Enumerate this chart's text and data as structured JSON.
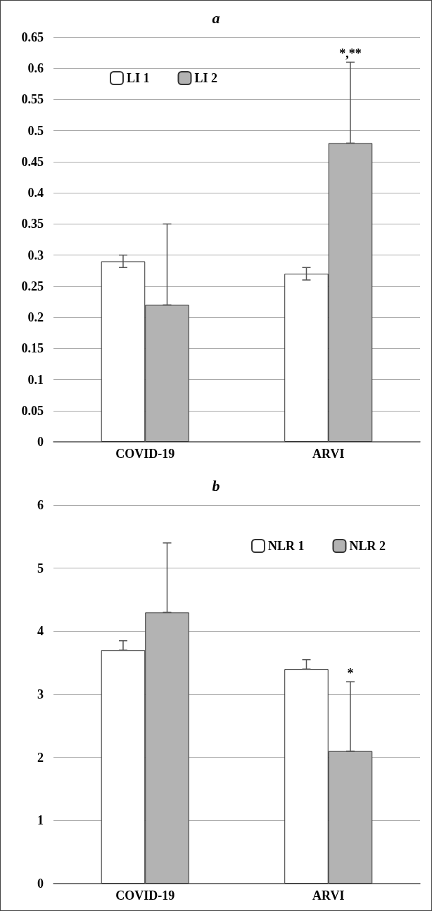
{
  "chart_data": [
    {
      "type": "bar",
      "title": "a",
      "categories": [
        "COVID-19",
        "ARVI"
      ],
      "series": [
        {
          "name": "LI 1",
          "color": "#ffffff",
          "values": [
            0.29,
            0.27
          ],
          "errors": [
            0.01,
            0.01
          ]
        },
        {
          "name": "LI 2",
          "color": "#b3b3b3",
          "values": [
            0.22,
            0.48
          ],
          "errors": [
            [
              0.22,
              0.35
            ],
            [
              0.48,
              0.61
            ]
          ]
        }
      ],
      "ylim": [
        0,
        0.65
      ],
      "yticks": [
        0,
        0.05,
        0.1,
        0.15,
        0.2,
        0.25,
        0.3,
        0.35,
        0.4,
        0.45,
        0.5,
        0.55,
        0.6,
        0.65
      ],
      "grid": "y",
      "legend": "top left",
      "annotations": [
        "*,**"
      ]
    },
    {
      "type": "bar",
      "title": "b",
      "categories": [
        "COVID-19",
        "ARVI"
      ],
      "series": [
        {
          "name": "NLR 1",
          "color": "#ffffff",
          "values": [
            3.7,
            3.4
          ],
          "errors": [
            [
              3.7,
              3.85
            ],
            [
              3.4,
              3.55
            ]
          ]
        },
        {
          "name": "NLR 2",
          "color": "#b3b3b3",
          "values": [
            4.3,
            2.1
          ],
          "errors": [
            [
              4.3,
              5.4
            ],
            [
              2.1,
              3.2
            ]
          ]
        }
      ],
      "ylim": [
        0,
        6
      ],
      "yticks": [
        0,
        1,
        2,
        3,
        4,
        5,
        6
      ],
      "grid": "y",
      "legend": "top right",
      "annotations": [
        "*"
      ]
    }
  ]
}
